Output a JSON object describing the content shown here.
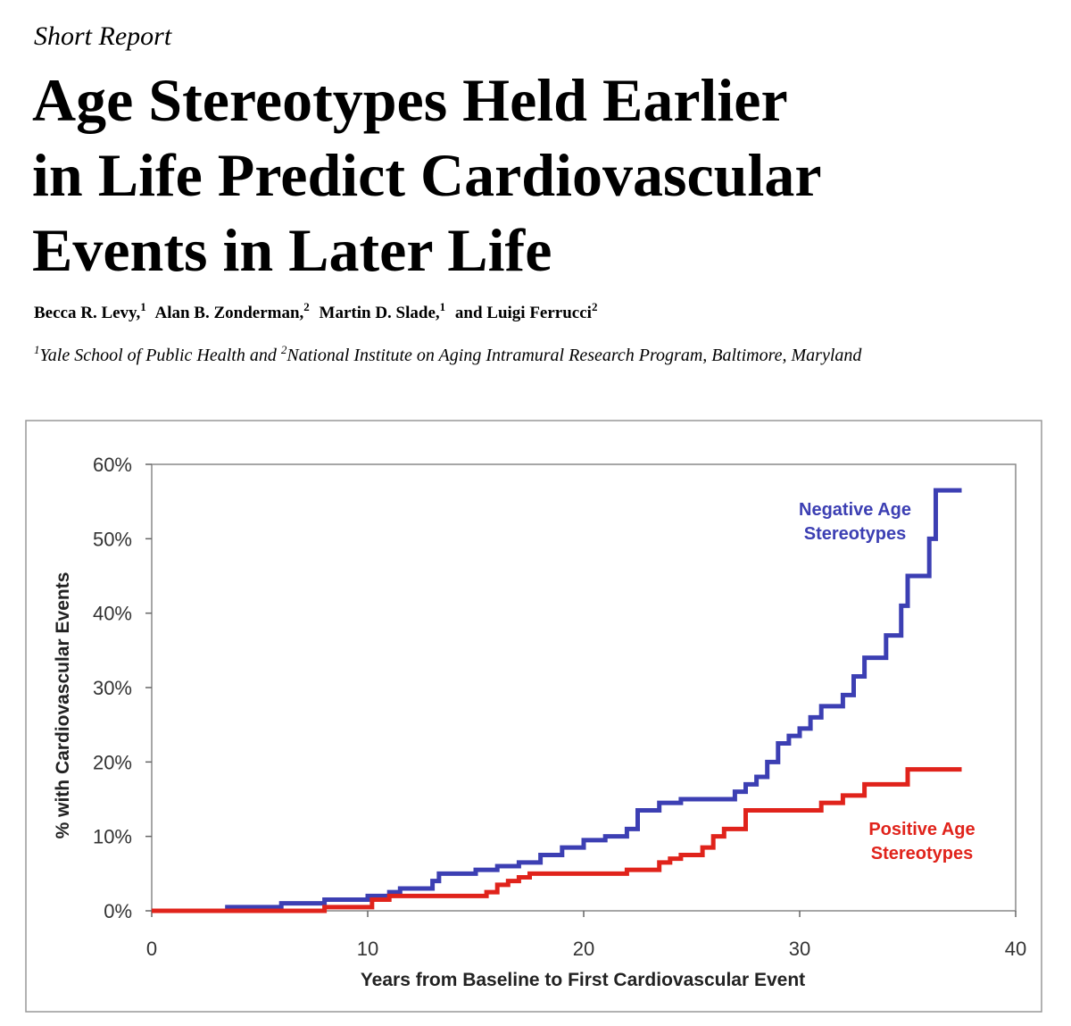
{
  "header": {
    "kicker": "Short Report",
    "title_lines": [
      "Age Stereotypes Held Earlier",
      "in Life Predict Cardiovascular",
      "Events in Later Life"
    ],
    "authors": [
      {
        "name": "Becca R. Levy,",
        "sup": "1"
      },
      {
        "name": "Alan B. Zonderman,",
        "sup": "2"
      },
      {
        "name": "Martin D. Slade,",
        "sup": "1"
      },
      {
        "name": "and Luigi Ferrucci",
        "sup": "2"
      }
    ],
    "affiliations": [
      {
        "sup": "1",
        "text": "Yale School of Public Health and "
      },
      {
        "sup": "2",
        "text": "National Institute on Aging Intramural Research Program, Baltimore, Maryland"
      }
    ]
  },
  "chart_data": {
    "type": "line",
    "step": true,
    "x_label": "Years from Baseline to First Cardiovascular Event",
    "y_label": "% with Cardiovascular Events",
    "xlim": [
      0,
      40
    ],
    "xticks": [
      0,
      10,
      20,
      30,
      40
    ],
    "ylim": [
      0,
      60
    ],
    "yticks": [
      {
        "value": 0,
        "label": "0%"
      },
      {
        "value": 10,
        "label": "10%"
      },
      {
        "value": 20,
        "label": "20%"
      },
      {
        "value": 30,
        "label": "30%"
      },
      {
        "value": 40,
        "label": "40%"
      },
      {
        "value": 50,
        "label": "50%"
      },
      {
        "value": 60,
        "label": "60%"
      }
    ],
    "series": [
      {
        "name": "Negative Age Stereotypes",
        "color": "#3c3fb3",
        "x": [
          0,
          3.5,
          6,
          8,
          10,
          11,
          11.5,
          13,
          13.3,
          15,
          16,
          17,
          18,
          19,
          20,
          21,
          22,
          22.5,
          23.5,
          24.5,
          27,
          27.5,
          28,
          28.5,
          29,
          29.5,
          30,
          30.5,
          31,
          32,
          32.5,
          33,
          34,
          34.7,
          35,
          36,
          36.3,
          37.5
        ],
        "values": [
          0,
          0.5,
          1,
          1.5,
          2,
          2.5,
          3,
          4,
          5,
          5.5,
          6,
          6.5,
          7.5,
          8.5,
          9.5,
          10,
          11,
          13.5,
          14.5,
          15,
          16,
          17,
          18,
          20,
          22.5,
          23.5,
          24.5,
          26,
          27.5,
          29,
          31.5,
          34,
          37,
          41,
          45,
          50,
          56.5,
          56.5
        ]
      },
      {
        "name": "Positive Age Stereotypes",
        "color": "#e0231b",
        "x": [
          0,
          8,
          10.2,
          11,
          15.5,
          16,
          16.5,
          17,
          17.5,
          22,
          23.5,
          24,
          24.5,
          25.5,
          26,
          26.5,
          27.5,
          31,
          32,
          33,
          35,
          37.5
        ],
        "values": [
          0,
          0.5,
          1.5,
          2,
          2.5,
          3.5,
          4,
          4.5,
          5,
          5.5,
          6.5,
          7,
          7.5,
          8.5,
          10,
          11,
          13.5,
          14.5,
          15.5,
          17,
          19,
          19
        ]
      }
    ],
    "annotations": [
      {
        "lines": [
          "Negative Age",
          "Stereotypes"
        ],
        "color": "#3c3fb3"
      },
      {
        "lines": [
          "Positive Age",
          "Stereotypes"
        ],
        "color": "#e0231b"
      }
    ]
  }
}
